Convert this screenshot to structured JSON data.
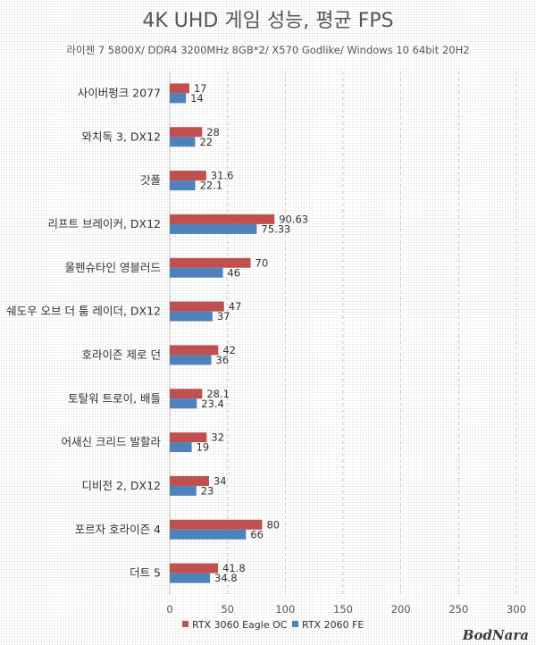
{
  "chart_data": {
    "type": "bar",
    "orientation": "horizontal",
    "title": "4K UHD 게임 성능, 평균 FPS",
    "subtitle": "라이젠 7 5800X/ DDR4 3200MHz 8GB*2/ X570 Godlike/ Windows 10 64bit 20H2",
    "categories": [
      "사이버펑크 2077",
      "와치독 3, DX12",
      "갓폴",
      "리프트 브레이커, DX12",
      "울펜슈타인 영블러드",
      "쉐도우 오브 더 툼 레이더, DX12",
      "호라이즌 제로 던",
      "토탈워 트로이, 배틀",
      "어새신 크리드 발할라",
      "디비전 2, DX12",
      "포르자 호라이즌 4",
      "더트 5"
    ],
    "series": [
      {
        "name": "RTX 3060 Eagle OC",
        "color": "#c0504d",
        "values": [
          17,
          28,
          31.6,
          90.63,
          70,
          47,
          42,
          28.1,
          32,
          34,
          80,
          41.8
        ]
      },
      {
        "name": "RTX 2060 FE",
        "color": "#4f81bd",
        "values": [
          14,
          22,
          22.1,
          75.33,
          46,
          37,
          36,
          23.4,
          19,
          23,
          66,
          34.8
        ]
      }
    ],
    "xlim": [
      0,
      300
    ],
    "ticks": [
      0,
      50,
      100,
      150,
      200,
      250,
      300
    ],
    "grid": true,
    "legend_position": "bottom"
  },
  "watermark": "BodNara"
}
